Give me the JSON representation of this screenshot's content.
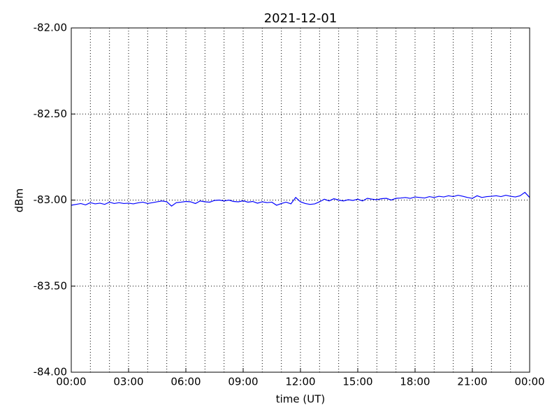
{
  "chart_data": {
    "type": "line",
    "title": "2021-12-01",
    "xlabel": "time (UT)",
    "ylabel": "dBm",
    "x": [
      0,
      0.25,
      0.5,
      0.75,
      1,
      1.25,
      1.5,
      1.75,
      2,
      2.25,
      2.5,
      2.75,
      3,
      3.25,
      3.5,
      3.75,
      4,
      4.25,
      4.5,
      4.75,
      5,
      5.25,
      5.5,
      5.75,
      6,
      6.25,
      6.5,
      6.75,
      7,
      7.25,
      7.5,
      7.75,
      8,
      8.25,
      8.5,
      8.75,
      9,
      9.25,
      9.5,
      9.75,
      10,
      10.25,
      10.5,
      10.75,
      11,
      11.25,
      11.5,
      11.75,
      12,
      12.25,
      12.5,
      12.75,
      13,
      13.25,
      13.5,
      13.75,
      14,
      14.25,
      14.5,
      14.75,
      15,
      15.25,
      15.5,
      15.75,
      16,
      16.25,
      16.5,
      16.75,
      17,
      17.25,
      17.5,
      17.75,
      18,
      18.25,
      18.5,
      18.75,
      19,
      19.25,
      19.5,
      19.75,
      20,
      20.25,
      20.5,
      20.75,
      21,
      21.25,
      21.5,
      21.75,
      22,
      22.25,
      22.5,
      22.75,
      23,
      23.25,
      23.5,
      23.75,
      24
    ],
    "series": [
      {
        "color": "#0000ff",
        "values": [
          -83.03,
          -83.025,
          -83.02,
          -83.028,
          -83.015,
          -83.022,
          -83.018,
          -83.025,
          -83.012,
          -83.02,
          -83.015,
          -83.02,
          -83.018,
          -83.022,
          -83.016,
          -83.012,
          -83.02,
          -83.015,
          -83.01,
          -83.005,
          -83.01,
          -83.035,
          -83.015,
          -83.012,
          -83.008,
          -83.01,
          -83.02,
          -83.005,
          -83.01,
          -83.012,
          -83.002,
          -83.0,
          -83.005,
          -83.0,
          -83.008,
          -83.01,
          -83.004,
          -83.012,
          -83.008,
          -83.018,
          -83.01,
          -83.015,
          -83.012,
          -83.03,
          -83.02,
          -83.012,
          -83.022,
          -82.985,
          -83.01,
          -83.02,
          -83.025,
          -83.022,
          -83.01,
          -82.995,
          -83.005,
          -82.992,
          -83.0,
          -83.005,
          -82.998,
          -83.002,
          -82.995,
          -83.005,
          -82.99,
          -82.995,
          -82.998,
          -82.992,
          -82.99,
          -83.0,
          -82.99,
          -82.988,
          -82.985,
          -82.99,
          -82.982,
          -82.985,
          -82.988,
          -82.98,
          -82.985,
          -82.978,
          -82.982,
          -82.975,
          -82.98,
          -82.972,
          -82.978,
          -82.985,
          -82.99,
          -82.975,
          -82.985,
          -82.98,
          -82.978,
          -82.975,
          -82.98,
          -82.972,
          -82.978,
          -82.982,
          -82.975,
          -82.955,
          -82.985
        ]
      }
    ],
    "xlim": [
      0,
      24
    ],
    "xticks": [
      {
        "value": 0,
        "label": "00:00"
      },
      {
        "value": 3,
        "label": "03:00"
      },
      {
        "value": 6,
        "label": "06:00"
      },
      {
        "value": 9,
        "label": "09:00"
      },
      {
        "value": 12,
        "label": "12:00"
      },
      {
        "value": 15,
        "label": "15:00"
      },
      {
        "value": 18,
        "label": "18:00"
      },
      {
        "value": 21,
        "label": "21:00"
      },
      {
        "value": 24,
        "label": "00:00"
      }
    ],
    "xminorticks": [
      1,
      2,
      4,
      5,
      7,
      8,
      10,
      11,
      13,
      14,
      16,
      17,
      19,
      20,
      22,
      23
    ],
    "ylim": [
      -84,
      -82
    ],
    "yticks": [
      {
        "value": -84,
        "label": "-84.00"
      },
      {
        "value": -83.5,
        "label": "-83.50"
      },
      {
        "value": -83,
        "label": "-83.00"
      },
      {
        "value": -82.5,
        "label": "-82.50"
      },
      {
        "value": -82,
        "label": "-82.00"
      }
    ],
    "grid": true
  }
}
